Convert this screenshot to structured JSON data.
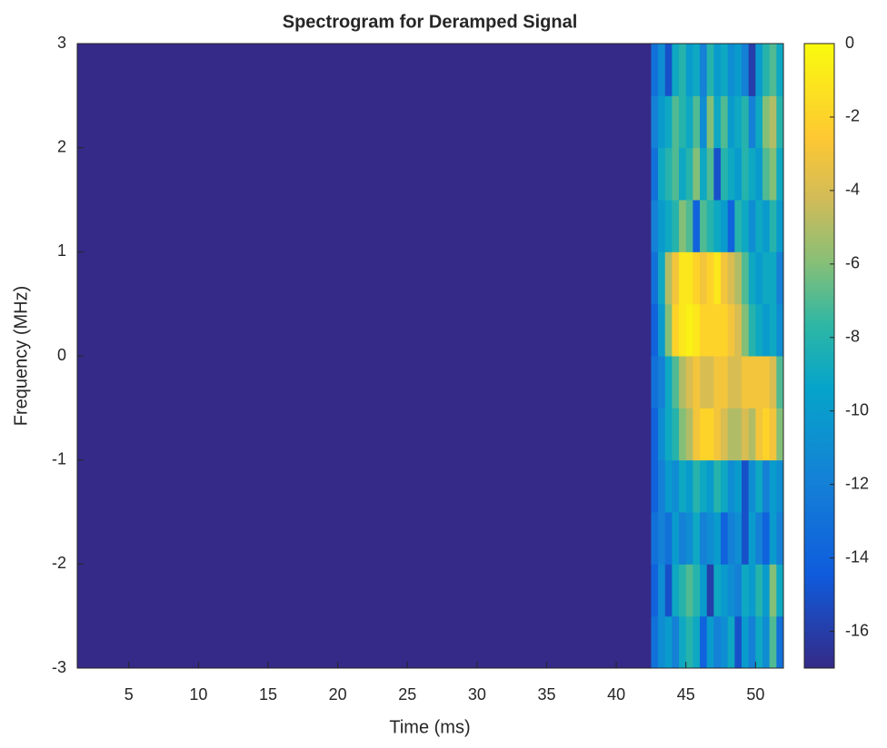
{
  "chart_data": {
    "type": "heatmap",
    "title": "Spectrogram for Deramped Signal",
    "xlabel": "Time (ms)",
    "ylabel": "Frequency (MHz)",
    "x_bins": [
      1.3,
      42.5,
      43,
      43.5,
      44,
      44.5,
      45,
      45.5,
      46,
      46.5,
      47,
      47.5,
      48,
      48.5,
      49,
      49.5,
      50,
      50.5,
      51,
      51.5,
      52
    ],
    "y_bins": [
      -3,
      -2.5,
      -2,
      -1.5,
      -1,
      -0.5,
      0,
      0.5,
      1,
      1.5,
      2,
      2.5,
      3
    ],
    "z": [
      [
        -17,
        -13,
        -11,
        -10,
        -12,
        -9,
        -8,
        -9,
        -14,
        -10,
        -12,
        -11,
        -9,
        -15,
        -10,
        -12,
        -9,
        -11,
        -7,
        -13
      ],
      [
        -17,
        -14,
        -11,
        -15,
        -9,
        -8,
        -7,
        -8,
        -10,
        -16,
        -9,
        -10,
        -11,
        -12,
        -9,
        -10,
        -8,
        -10,
        -6,
        -9
      ],
      [
        -17,
        -13,
        -12,
        -13,
        -10,
        -12,
        -11,
        -9,
        -12,
        -11,
        -10,
        -14,
        -12,
        -11,
        -15,
        -10,
        -12,
        -14,
        -10,
        -12
      ],
      [
        -17,
        -14,
        -12,
        -10,
        -11,
        -9,
        -10,
        -8,
        -9,
        -10,
        -8,
        -9,
        -11,
        -10,
        -15,
        -11,
        -9,
        -12,
        -10,
        -11
      ],
      [
        -17,
        -14,
        -11,
        -9,
        -8,
        -6,
        -5,
        -3,
        -2,
        -2,
        -3,
        -4,
        -5,
        -5,
        -4,
        -5,
        -3,
        -2,
        -3,
        -6
      ],
      [
        -17,
        -13,
        -12,
        -9,
        -7,
        -5,
        -4,
        -3,
        -4,
        -4,
        -3,
        -3,
        -4,
        -4,
        -3,
        -3,
        -3,
        -3,
        -4,
        -7
      ],
      [
        -17,
        -14,
        -10,
        -6,
        -2,
        -1,
        -0.5,
        -1,
        -2,
        -2,
        -2,
        -2,
        -3,
        -4,
        -6,
        -8,
        -9,
        -10,
        -9,
        -11
      ],
      [
        -17,
        -13,
        -9,
        -5,
        -3,
        -1,
        -1,
        -2,
        -3,
        -2,
        -1,
        -3,
        -4,
        -5,
        -7,
        -9,
        -10,
        -9,
        -9,
        -12
      ],
      [
        -17,
        -12,
        -10,
        -9,
        -8,
        -6,
        -7,
        -14,
        -7,
        -8,
        -9,
        -10,
        -14,
        -8,
        -9,
        -11,
        -9,
        -10,
        -8,
        -10
      ],
      [
        -17,
        -13,
        -9,
        -8,
        -7,
        -9,
        -8,
        -6,
        -9,
        -7,
        -15,
        -8,
        -9,
        -10,
        -8,
        -9,
        -10,
        -7,
        -6,
        -9
      ],
      [
        -17,
        -12,
        -10,
        -9,
        -7,
        -8,
        -9,
        -7,
        -11,
        -6,
        -9,
        -7,
        -10,
        -9,
        -8,
        -12,
        -9,
        -6,
        -5,
        -8
      ],
      [
        -17,
        -13,
        -11,
        -15,
        -9,
        -8,
        -10,
        -9,
        -12,
        -8,
        -10,
        -9,
        -11,
        -10,
        -12,
        -16,
        -10,
        -8,
        -7,
        -9
      ]
    ],
    "xlim": [
      1.3,
      52
    ],
    "ylim": [
      -3,
      3
    ],
    "clim": [
      -17,
      0
    ],
    "xticks": [
      5,
      10,
      15,
      20,
      25,
      30,
      35,
      40,
      45,
      50
    ],
    "yticks": [
      -3,
      -2,
      -1,
      0,
      1,
      2,
      3
    ],
    "cticks": [
      0,
      -2,
      -4,
      -6,
      -8,
      -10,
      -12,
      -14,
      -16
    ],
    "colormap": "parula"
  }
}
